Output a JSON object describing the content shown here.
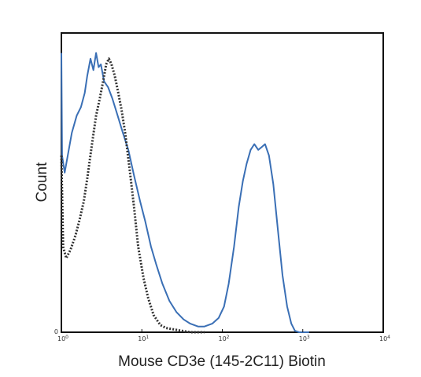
{
  "chart_data": {
    "type": "line",
    "title": "",
    "xlabel": "Mouse CD3e (145-2C11) Biotin",
    "ylabel": "Count",
    "x_scale": "log",
    "xlim": [
      1,
      10000
    ],
    "ylim": [
      0,
      1.05
    ],
    "x_ticks": [
      {
        "value": 1,
        "base": "10",
        "exp": "0"
      },
      {
        "value": 10,
        "base": "10",
        "exp": "1"
      },
      {
        "value": 100,
        "base": "10",
        "exp": "2"
      },
      {
        "value": 1000,
        "base": "10",
        "exp": "3"
      },
      {
        "value": 10000,
        "base": "10",
        "exp": "4"
      }
    ],
    "y_ticks": [
      {
        "value": 0,
        "label": "0"
      }
    ],
    "grid": false,
    "legend": "none",
    "series": [
      {
        "style": "solid",
        "color": "#3a6fb5",
        "points": [
          [
            1.0,
            0.98
          ],
          [
            1.02,
            0.62
          ],
          [
            1.1,
            0.56
          ],
          [
            1.2,
            0.62
          ],
          [
            1.35,
            0.7
          ],
          [
            1.55,
            0.76
          ],
          [
            1.75,
            0.79
          ],
          [
            1.95,
            0.84
          ],
          [
            2.1,
            0.9
          ],
          [
            2.3,
            0.96
          ],
          [
            2.5,
            0.92
          ],
          [
            2.7,
            0.98
          ],
          [
            2.9,
            0.93
          ],
          [
            3.1,
            0.94
          ],
          [
            3.4,
            0.88
          ],
          [
            3.8,
            0.86
          ],
          [
            4.3,
            0.82
          ],
          [
            5.0,
            0.76
          ],
          [
            5.8,
            0.7
          ],
          [
            6.8,
            0.64
          ],
          [
            8.0,
            0.55
          ],
          [
            9.5,
            0.46
          ],
          [
            11,
            0.39
          ],
          [
            13,
            0.3
          ],
          [
            15,
            0.24
          ],
          [
            18,
            0.17
          ],
          [
            22,
            0.11
          ],
          [
            27,
            0.07
          ],
          [
            33,
            0.045
          ],
          [
            40,
            0.03
          ],
          [
            50,
            0.02
          ],
          [
            60,
            0.02
          ],
          [
            75,
            0.03
          ],
          [
            90,
            0.05
          ],
          [
            105,
            0.09
          ],
          [
            120,
            0.17
          ],
          [
            140,
            0.3
          ],
          [
            160,
            0.44
          ],
          [
            180,
            0.53
          ],
          [
            200,
            0.59
          ],
          [
            225,
            0.64
          ],
          [
            250,
            0.66
          ],
          [
            280,
            0.64
          ],
          [
            310,
            0.65
          ],
          [
            340,
            0.66
          ],
          [
            380,
            0.62
          ],
          [
            430,
            0.52
          ],
          [
            490,
            0.36
          ],
          [
            560,
            0.2
          ],
          [
            640,
            0.09
          ],
          [
            720,
            0.03
          ],
          [
            800,
            0.005
          ],
          [
            900,
            0.0
          ],
          [
            1200,
            0.0
          ]
        ]
      },
      {
        "style": "dotted",
        "color": "#333333",
        "points": [
          [
            1.0,
            0.62
          ],
          [
            1.05,
            0.3
          ],
          [
            1.15,
            0.26
          ],
          [
            1.3,
            0.29
          ],
          [
            1.5,
            0.34
          ],
          [
            1.7,
            0.4
          ],
          [
            1.9,
            0.46
          ],
          [
            2.1,
            0.54
          ],
          [
            2.4,
            0.66
          ],
          [
            2.7,
            0.76
          ],
          [
            3.0,
            0.82
          ],
          [
            3.3,
            0.88
          ],
          [
            3.6,
            0.94
          ],
          [
            3.9,
            0.96
          ],
          [
            4.2,
            0.94
          ],
          [
            4.6,
            0.9
          ],
          [
            5.1,
            0.84
          ],
          [
            5.6,
            0.78
          ],
          [
            6.2,
            0.7
          ],
          [
            7.0,
            0.58
          ],
          [
            8.0,
            0.44
          ],
          [
            9.0,
            0.3
          ],
          [
            10.5,
            0.19
          ],
          [
            12,
            0.12
          ],
          [
            14,
            0.06
          ],
          [
            17,
            0.025
          ],
          [
            20,
            0.015
          ],
          [
            25,
            0.01
          ],
          [
            30,
            0.006
          ],
          [
            40,
            0.0
          ],
          [
            60,
            0.0
          ]
        ]
      }
    ]
  }
}
